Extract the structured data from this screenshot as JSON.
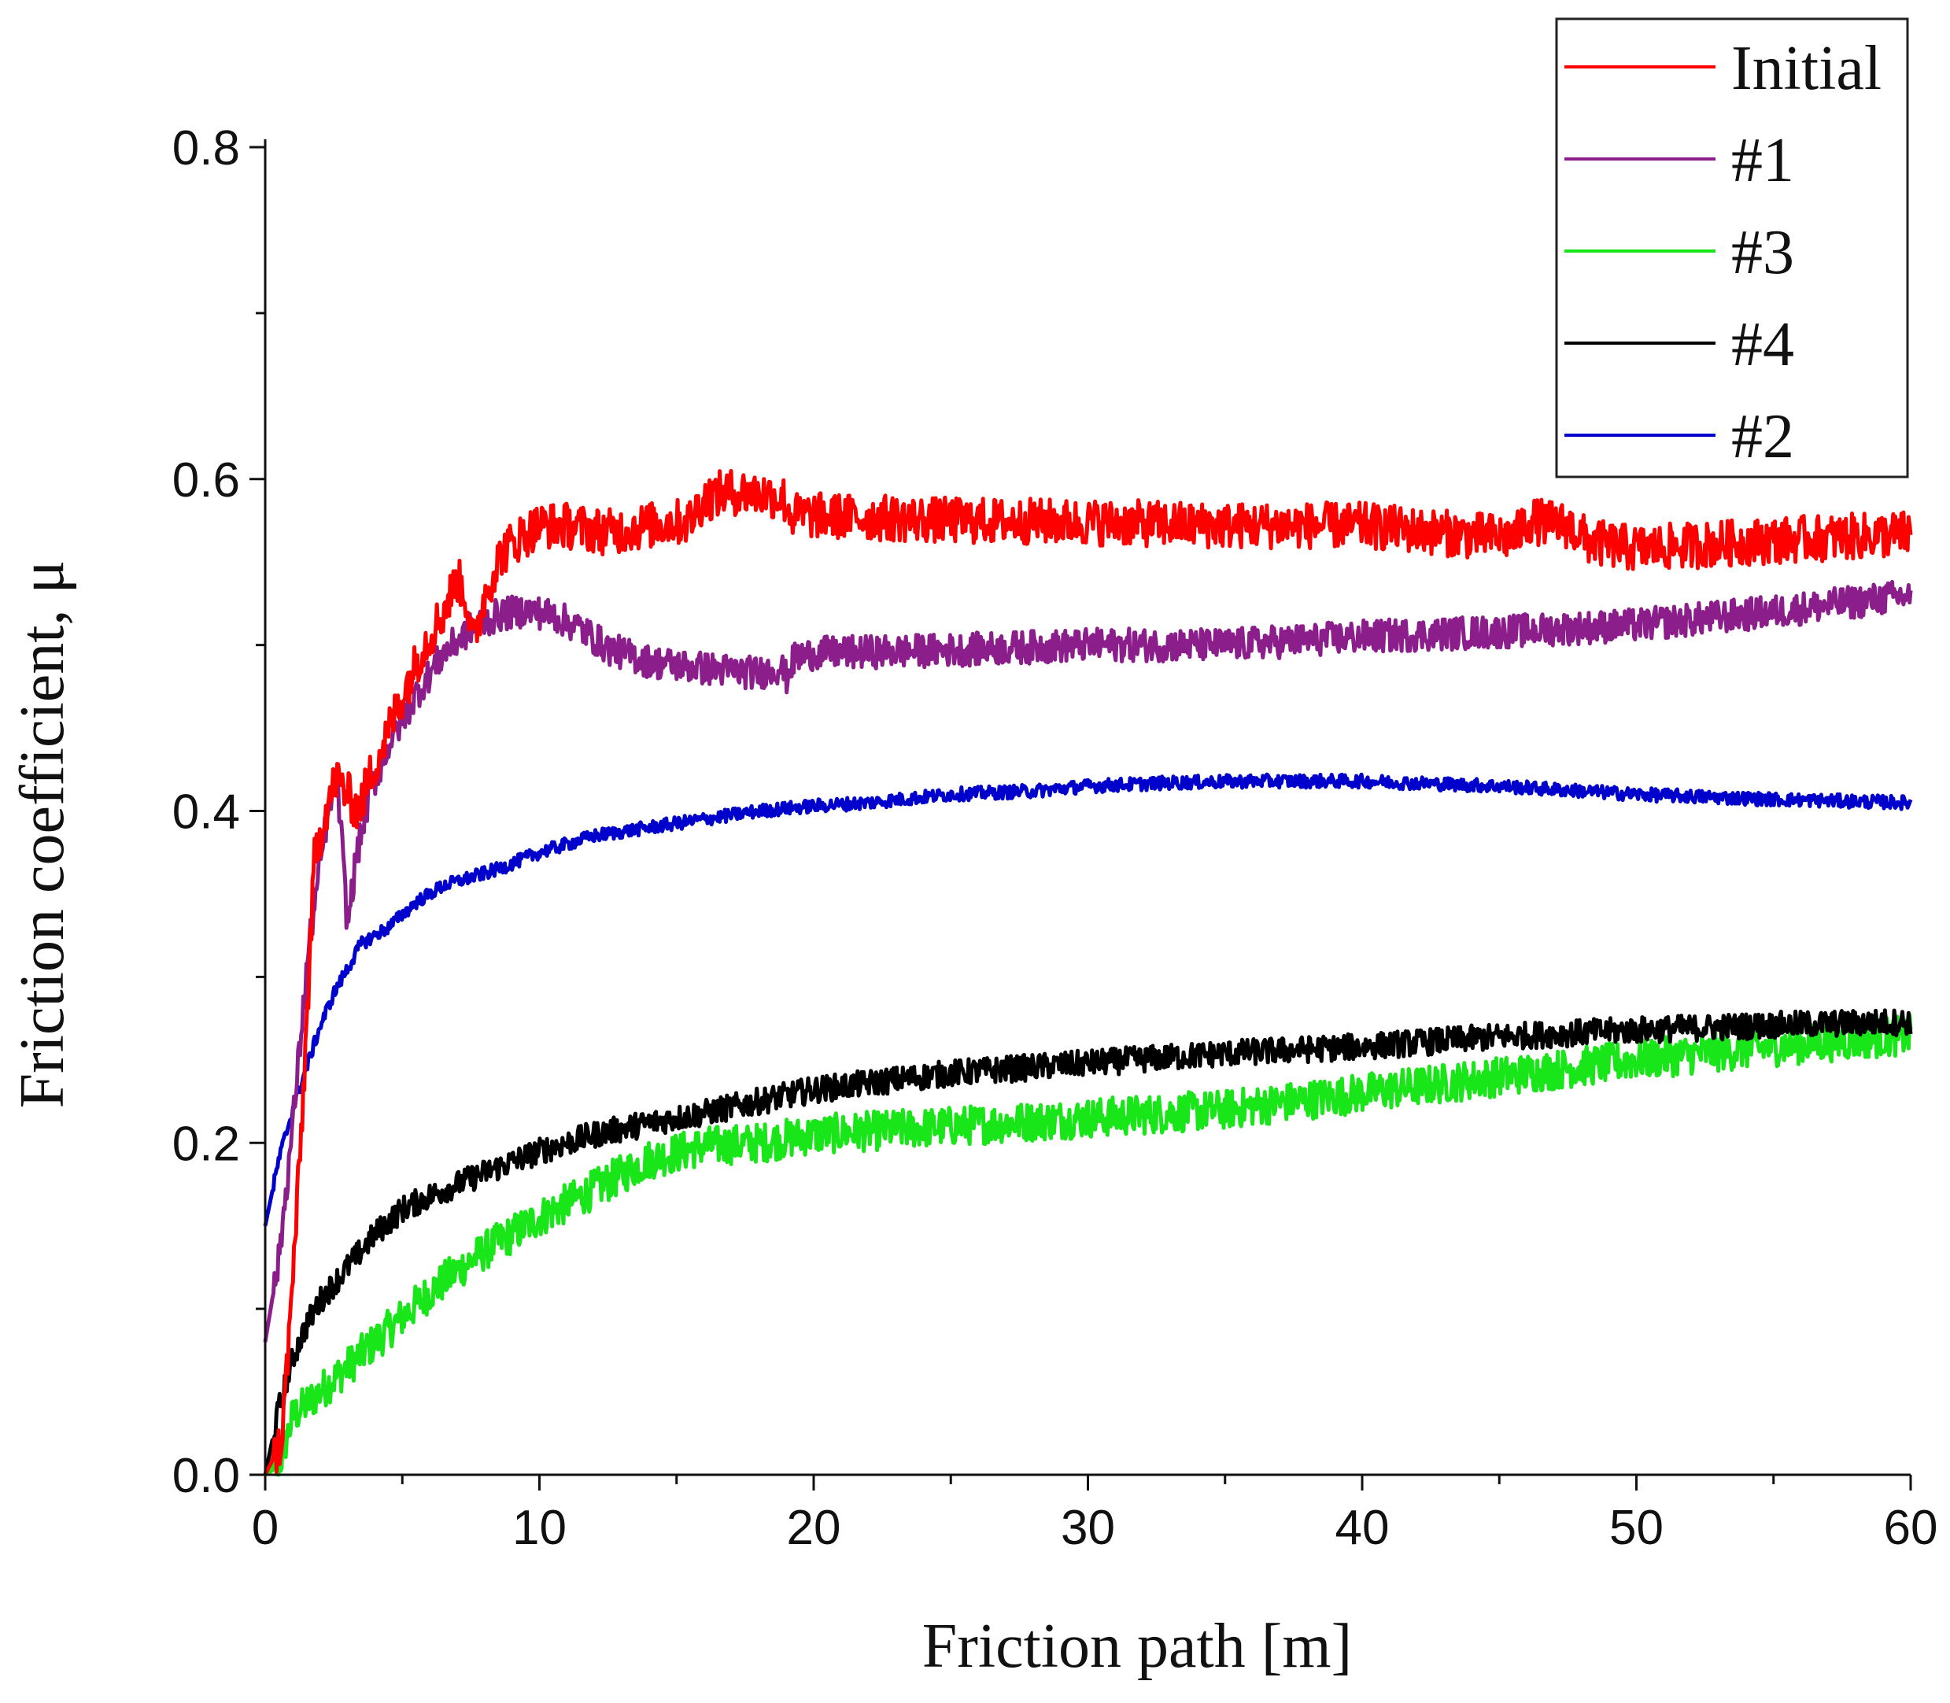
{
  "chart_data": {
    "type": "line",
    "title": "",
    "xlabel": "Friction path [m]",
    "ylabel": "Friction coefficient, μ",
    "xlim": [
      0,
      60
    ],
    "ylim": [
      0,
      0.8
    ],
    "xticks": [
      0,
      10,
      20,
      30,
      40,
      50,
      60
    ],
    "yticks": [
      0.0,
      0.2,
      0.4,
      0.6,
      0.8
    ],
    "xtick_labels": [
      "0",
      "10",
      "20",
      "30",
      "40",
      "50",
      "60"
    ],
    "ytick_labels": [
      "0.0",
      "0.2",
      "0.4",
      "0.6",
      "0.8"
    ],
    "grid": false,
    "legend_position": "top-right",
    "series": [
      {
        "name": "Initial",
        "color": "#ff0000",
        "noise": 0.014,
        "x": [
          0,
          0.6,
          0.9,
          1.3,
          1.8,
          2.2,
          2.6,
          3.0,
          3.4,
          3.8,
          4.3,
          5.0,
          5.8,
          6.5,
          7.0,
          7.3,
          7.6,
          8.0,
          8.6,
          9.3,
          10.0,
          11.0,
          12.5,
          14.0,
          15.5,
          16.0,
          16.8,
          17.5,
          18.5,
          18.9,
          19.2,
          20.0,
          25.0,
          30.0,
          35.0,
          40.0,
          44.0,
          45.6,
          46.0,
          47.5,
          48.3,
          50.0,
          55.0,
          60.0
        ],
        "y": [
          0.0,
          0.02,
          0.09,
          0.2,
          0.37,
          0.4,
          0.42,
          0.41,
          0.4,
          0.42,
          0.44,
          0.47,
          0.5,
          0.52,
          0.54,
          0.53,
          0.5,
          0.53,
          0.555,
          0.565,
          0.572,
          0.572,
          0.568,
          0.572,
          0.575,
          0.588,
          0.592,
          0.592,
          0.59,
          0.588,
          0.578,
          0.578,
          0.575,
          0.574,
          0.572,
          0.572,
          0.566,
          0.565,
          0.575,
          0.572,
          0.562,
          0.558,
          0.563,
          0.567
        ]
      },
      {
        "name": "#1",
        "color": "#8b1e8b",
        "noise": 0.01,
        "x": [
          0,
          0.5,
          1.0,
          1.6,
          2.2,
          2.6,
          2.8,
          3.0,
          3.3,
          3.8,
          4.5,
          5.5,
          6.5,
          7.5,
          8.5,
          9.5,
          10.5,
          11.5,
          12.5,
          14.0,
          16.0,
          18.0,
          18.8,
          19.0,
          19.3,
          20.0,
          25.0,
          30.0,
          35.0,
          40.0,
          45.0,
          50.0,
          55.0,
          60.0
        ],
        "y": [
          0.08,
          0.13,
          0.21,
          0.32,
          0.39,
          0.42,
          0.38,
          0.33,
          0.37,
          0.41,
          0.44,
          0.47,
          0.495,
          0.51,
          0.518,
          0.521,
          0.518,
          0.51,
          0.498,
          0.49,
          0.486,
          0.483,
          0.487,
          0.48,
          0.492,
          0.495,
          0.497,
          0.5,
          0.5,
          0.505,
          0.508,
          0.512,
          0.52,
          0.53
        ]
      },
      {
        "name": "#3",
        "color": "#19e619",
        "noise": 0.012,
        "x": [
          0,
          0.5,
          1.0,
          2.0,
          3.0,
          4.0,
          5.0,
          6.0,
          7.0,
          8.0,
          9.0,
          10.0,
          12.0,
          14.0,
          16.0,
          18.0,
          20.0,
          25.0,
          30.0,
          35.0,
          40.0,
          45.0,
          50.0,
          55.0,
          60.0
        ],
        "y": [
          0.0,
          0.005,
          0.035,
          0.05,
          0.065,
          0.08,
          0.095,
          0.11,
          0.123,
          0.135,
          0.145,
          0.155,
          0.172,
          0.19,
          0.198,
          0.2,
          0.205,
          0.21,
          0.215,
          0.22,
          0.23,
          0.24,
          0.25,
          0.258,
          0.265
        ]
      },
      {
        "name": "#4",
        "color": "#000000",
        "noise": 0.008,
        "x": [
          0,
          0.5,
          1.0,
          1.5,
          2.0,
          3.0,
          4.0,
          5.0,
          6.0,
          7.0,
          8.0,
          10.0,
          12.0,
          14.0,
          16.0,
          18.0,
          20.0,
          25.0,
          30.0,
          35.0,
          40.0,
          45.0,
          50.0,
          55.0,
          60.0
        ],
        "y": [
          0.0,
          0.04,
          0.07,
          0.09,
          0.105,
          0.125,
          0.145,
          0.16,
          0.168,
          0.175,
          0.182,
          0.195,
          0.205,
          0.212,
          0.218,
          0.225,
          0.232,
          0.242,
          0.248,
          0.254,
          0.258,
          0.264,
          0.268,
          0.271,
          0.273
        ]
      },
      {
        "name": "#2",
        "color": "#0000cc",
        "noise": 0.004,
        "x": [
          0,
          0.5,
          1.0,
          1.5,
          2.0,
          2.5,
          3.0,
          3.5,
          4.5,
          5.5,
          6.5,
          7.5,
          8.5,
          10.0,
          12.0,
          14.0,
          16.0,
          18.0,
          20.0,
          22.0,
          25.0,
          28.0,
          30.0,
          33.0,
          36.0,
          40.0,
          45.0,
          50.0,
          55.0,
          60.0
        ],
        "y": [
          0.15,
          0.19,
          0.22,
          0.245,
          0.27,
          0.29,
          0.305,
          0.32,
          0.33,
          0.345,
          0.355,
          0.36,
          0.365,
          0.375,
          0.385,
          0.39,
          0.395,
          0.4,
          0.403,
          0.405,
          0.41,
          0.412,
          0.415,
          0.417,
          0.418,
          0.418,
          0.415,
          0.41,
          0.407,
          0.405
        ]
      }
    ]
  }
}
